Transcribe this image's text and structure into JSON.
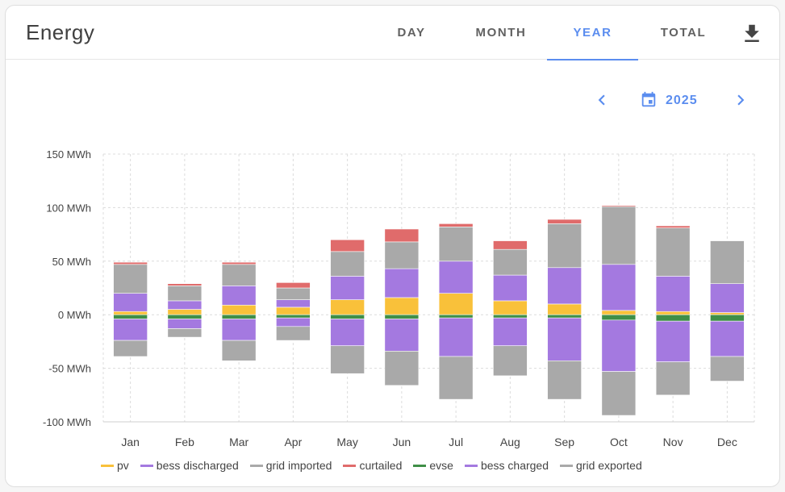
{
  "header": {
    "title": "Energy",
    "tabs": [
      {
        "label": "DAY",
        "active": false
      },
      {
        "label": "MONTH",
        "active": false
      },
      {
        "label": "YEAR",
        "active": true
      },
      {
        "label": "TOTAL",
        "active": false
      }
    ],
    "download_icon": "download-icon"
  },
  "date_nav": {
    "year": "2025",
    "prev_icon": "chevron-left-icon",
    "next_icon": "chevron-right-icon",
    "calendar_icon": "calendar-icon"
  },
  "colors": {
    "accent": "#5b8def",
    "pv": "#f9c13a",
    "bess": "#a479e0",
    "grid": "#a9a9a9",
    "curtailed": "#e06b6b",
    "evse": "#3f8f47"
  },
  "chart_data": {
    "type": "bar",
    "stacked": true,
    "categories": [
      "Jan",
      "Feb",
      "Mar",
      "Apr",
      "May",
      "Jun",
      "Jul",
      "Aug",
      "Sep",
      "Oct",
      "Nov",
      "Dec"
    ],
    "y_ticks": [
      "150 MWh",
      "100 MWh",
      "50 MWh",
      "0 MWh",
      "-50 MWh",
      "-100 MWh"
    ],
    "y_tick_values": [
      150,
      100,
      50,
      0,
      -50,
      -100
    ],
    "ylim": [
      -100,
      150
    ],
    "unit": "MWh",
    "grid": true,
    "legend_position": "bottom",
    "series": [
      {
        "name": "pv",
        "stack": "positive",
        "color": "#f9c13a",
        "values": [
          3,
          5,
          9,
          7,
          14,
          16,
          20,
          13,
          10,
          4,
          3,
          2
        ]
      },
      {
        "name": "bess discharged",
        "stack": "positive",
        "color": "#a479e0",
        "values": [
          17,
          8,
          18,
          7,
          22,
          27,
          30,
          24,
          34,
          43,
          33,
          27
        ]
      },
      {
        "name": "grid imported",
        "stack": "positive",
        "color": "#a9a9a9",
        "values": [
          27,
          14,
          20,
          11,
          23,
          25,
          32,
          24,
          41,
          54,
          45,
          40
        ]
      },
      {
        "name": "curtailed",
        "stack": "positive",
        "color": "#e06b6b",
        "values": [
          2,
          2,
          2,
          5,
          11,
          12,
          3,
          8,
          4,
          1,
          2,
          0
        ]
      },
      {
        "name": "evse",
        "stack": "negative",
        "color": "#3f8f47",
        "values": [
          -4,
          -4,
          -4,
          -3,
          -4,
          -4,
          -3,
          -3,
          -3,
          -5,
          -6,
          -6
        ]
      },
      {
        "name": "bess charged",
        "stack": "negative",
        "color": "#a479e0",
        "values": [
          -20,
          -9,
          -20,
          -8,
          -25,
          -30,
          -36,
          -26,
          -40,
          -48,
          -38,
          -33
        ]
      },
      {
        "name": "grid exported",
        "stack": "negative",
        "color": "#a9a9a9",
        "values": [
          -15,
          -8,
          -19,
          -13,
          -26,
          -32,
          -40,
          -28,
          -36,
          -41,
          -31,
          -23
        ]
      }
    ]
  }
}
